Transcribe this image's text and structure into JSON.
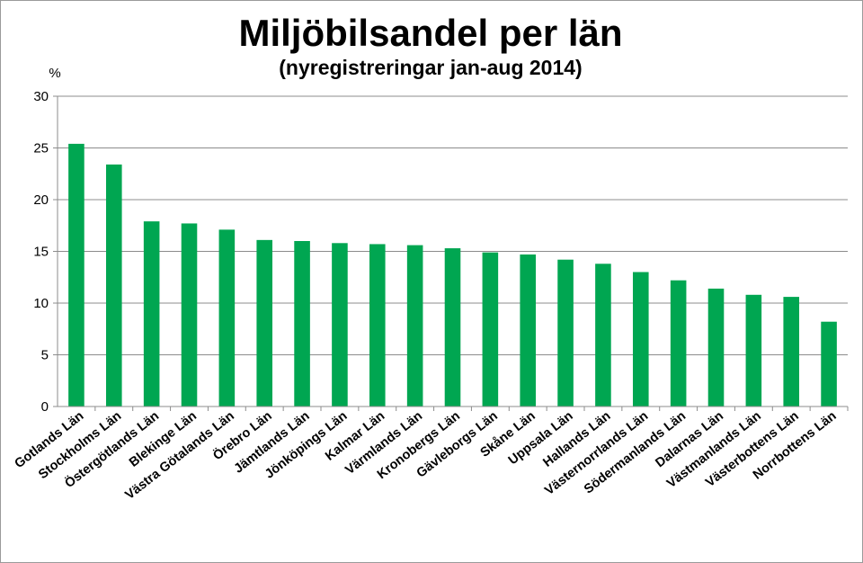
{
  "chart_data": {
    "type": "bar",
    "title": "Miljöbilsandel per län",
    "subtitle": "(nyregistreringar jan-aug 2014)",
    "ylabel": "%",
    "xlabel": "",
    "ylim": [
      0,
      30
    ],
    "yticks": [
      "0",
      "5",
      "10",
      "15",
      "20",
      "25",
      "30"
    ],
    "grid": true,
    "legend": "none",
    "bar_color": "#00a651",
    "categories": [
      "Gotlands Län",
      "Stockholms Län",
      "Östergötlands Län",
      "Blekinge Län",
      "Västra Götalands Län",
      "Örebro Län",
      "Jämtlands Län",
      "Jönköpings Län",
      "Kalmar Län",
      "Värmlands Län",
      "Kronobergs Län",
      "Gävleborgs Län",
      "Skåne Län",
      "Uppsala Län",
      "Hallands Län",
      "Västernorrlands Län",
      "Södermanlands Län",
      "Dalarnas Län",
      "Västmanlands Län",
      "Västerbottens Län",
      "Norrbottens Län"
    ],
    "values": [
      25.4,
      23.4,
      17.9,
      17.7,
      17.1,
      16.1,
      16.0,
      15.8,
      15.7,
      15.6,
      15.3,
      14.9,
      14.7,
      14.2,
      13.8,
      13.0,
      12.2,
      11.4,
      10.8,
      10.6,
      8.2
    ]
  }
}
